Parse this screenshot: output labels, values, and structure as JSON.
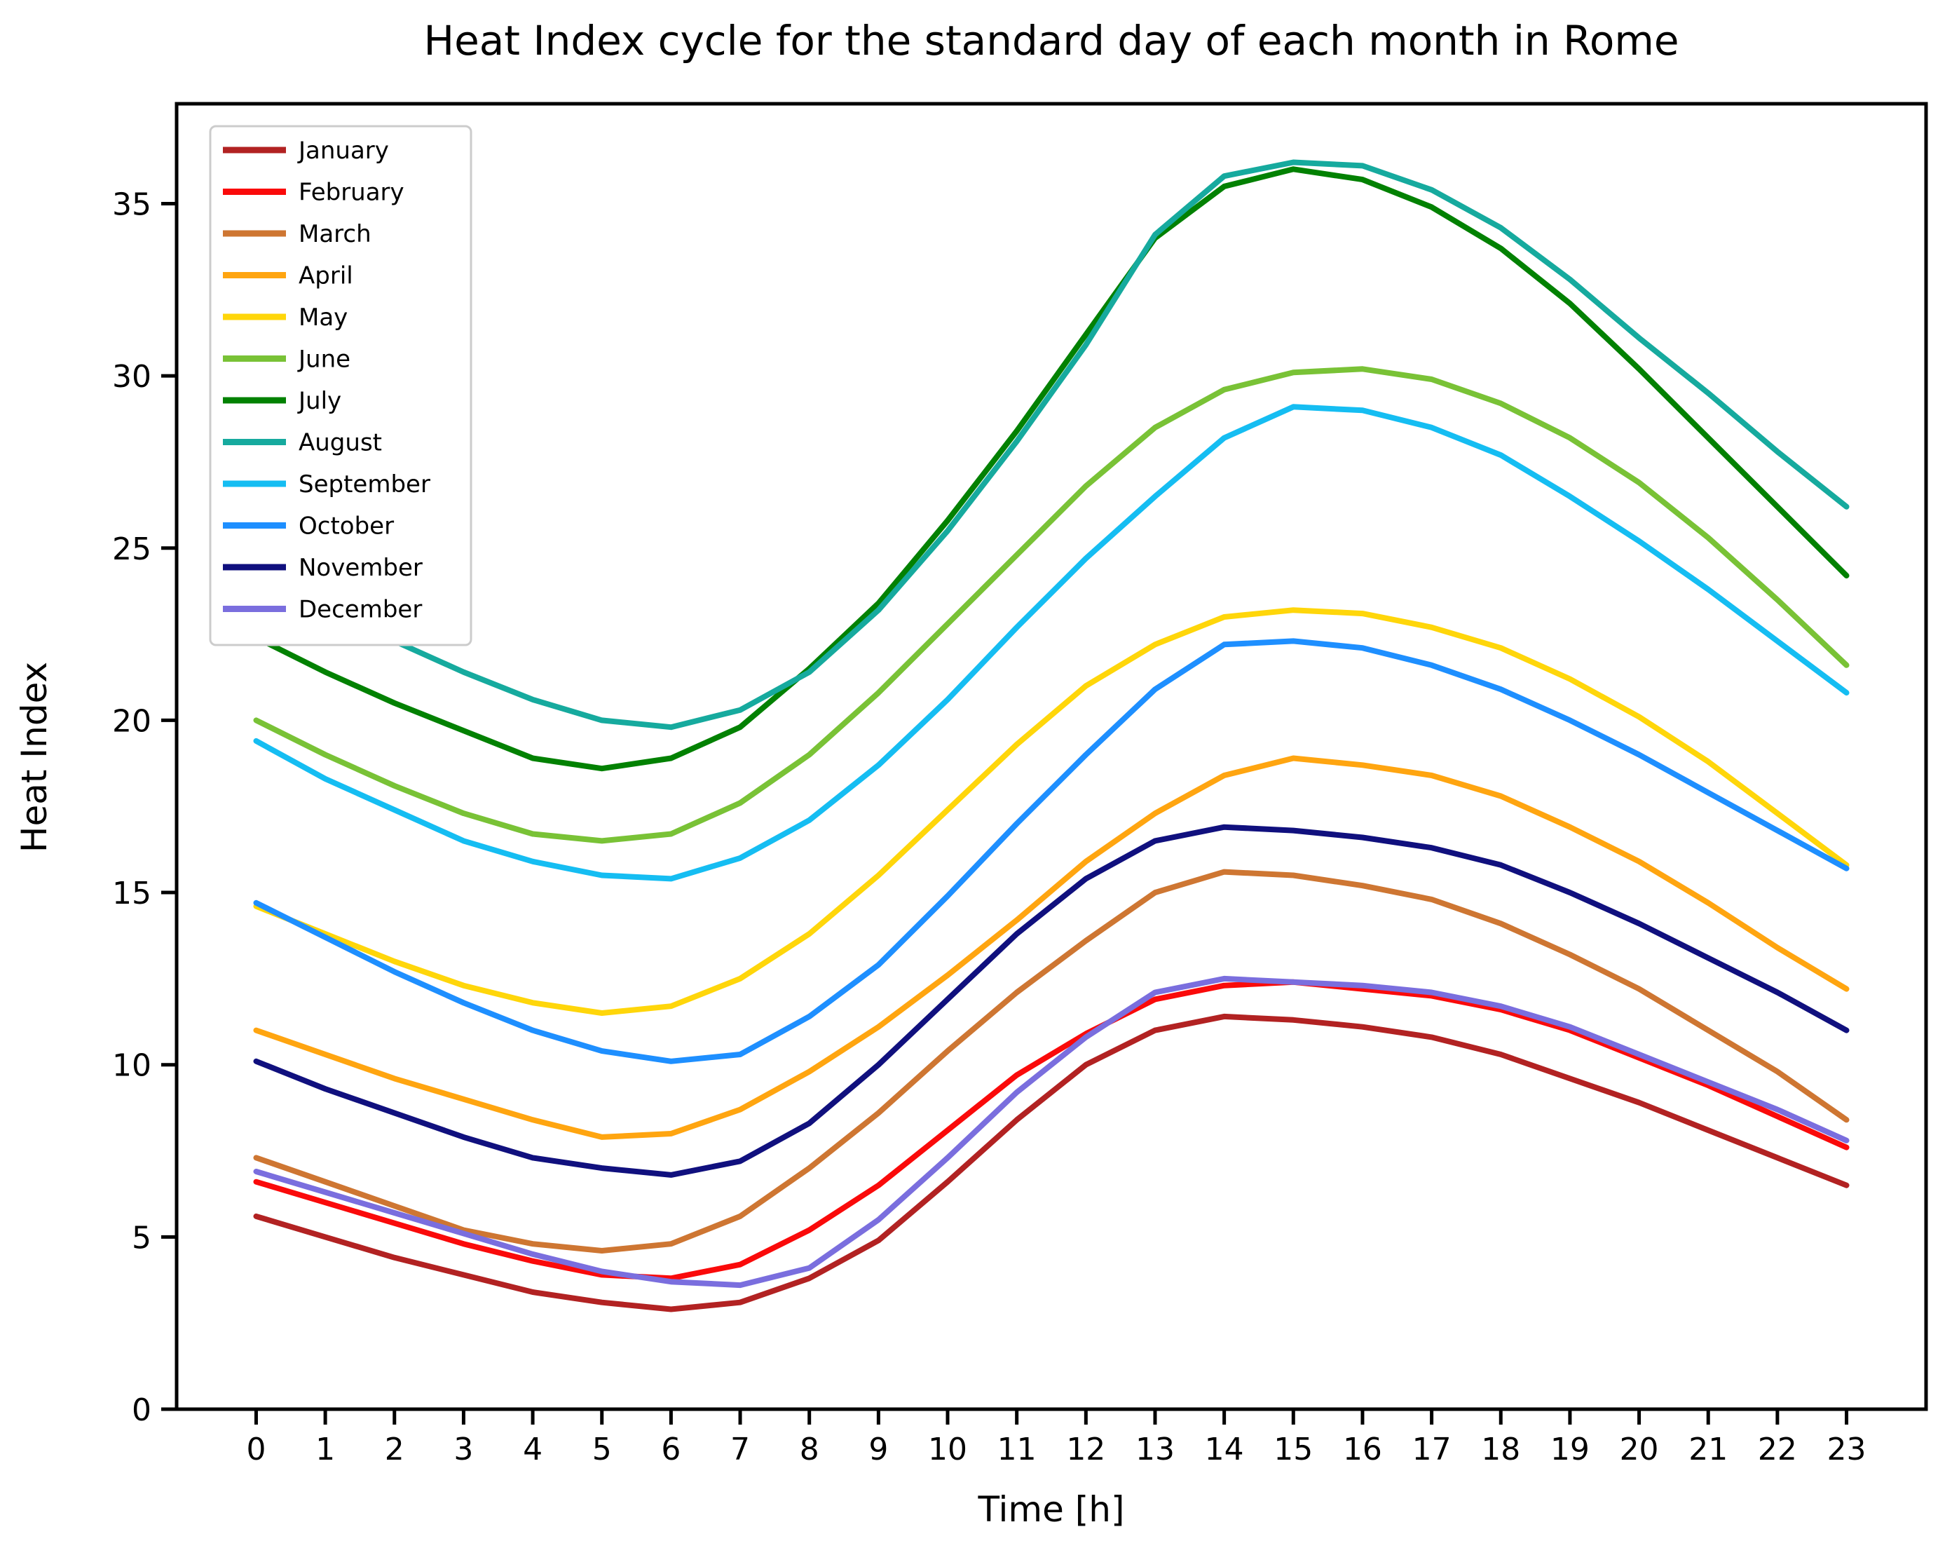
{
  "title": "Heat Index cycle for the standard day of each month in Rome",
  "xlabel": "Time [h]",
  "ylabel": "Heat Index",
  "chart_data": {
    "type": "line",
    "title": "Heat Index cycle for the standard day of each month in Rome",
    "xlabel": "Time [h]",
    "ylabel": "Heat Index",
    "x": [
      0,
      1,
      2,
      3,
      4,
      5,
      6,
      7,
      8,
      9,
      10,
      11,
      12,
      13,
      14,
      15,
      16,
      17,
      18,
      19,
      20,
      21,
      22,
      23
    ],
    "xticks": [
      0,
      1,
      2,
      3,
      4,
      5,
      6,
      7,
      8,
      9,
      10,
      11,
      12,
      13,
      14,
      15,
      16,
      17,
      18,
      19,
      20,
      21,
      22,
      23
    ],
    "yticks": [
      0,
      5,
      10,
      15,
      20,
      25,
      30,
      35
    ],
    "xlim": [
      -1.15,
      24.15
    ],
    "ylim": [
      0,
      37.9
    ],
    "grid": false,
    "legend_position": "upper left",
    "series": [
      {
        "name": "January",
        "color": "#b22222",
        "values": [
          5.6,
          5.0,
          4.4,
          3.9,
          3.4,
          3.1,
          2.9,
          3.1,
          3.8,
          4.9,
          6.6,
          8.4,
          10.0,
          11.0,
          11.4,
          11.3,
          11.1,
          10.8,
          10.3,
          9.6,
          8.9,
          8.1,
          7.3,
          6.5
        ]
      },
      {
        "name": "February",
        "color": "#fa0a0a",
        "values": [
          6.6,
          6.0,
          5.4,
          4.8,
          4.3,
          3.9,
          3.8,
          4.2,
          5.2,
          6.5,
          8.1,
          9.7,
          10.9,
          11.9,
          12.3,
          12.4,
          12.2,
          12.0,
          11.6,
          11.0,
          10.2,
          9.4,
          8.5,
          7.6
        ]
      },
      {
        "name": "March",
        "color": "#ce7632",
        "values": [
          7.3,
          6.6,
          5.9,
          5.2,
          4.8,
          4.6,
          4.8,
          5.6,
          7.0,
          8.6,
          10.4,
          12.1,
          13.6,
          15.0,
          15.6,
          15.5,
          15.2,
          14.8,
          14.1,
          13.2,
          12.2,
          11.0,
          9.8,
          8.4
        ]
      },
      {
        "name": "April",
        "color": "#ffa510",
        "values": [
          11.0,
          10.3,
          9.6,
          9.0,
          8.4,
          7.9,
          8.0,
          8.7,
          9.8,
          11.1,
          12.6,
          14.2,
          15.9,
          17.3,
          18.4,
          18.9,
          18.7,
          18.4,
          17.8,
          16.9,
          15.9,
          14.7,
          13.4,
          12.2
        ]
      },
      {
        "name": "May",
        "color": "#ffd60a",
        "values": [
          14.6,
          13.8,
          13.0,
          12.3,
          11.8,
          11.5,
          11.7,
          12.5,
          13.8,
          15.5,
          17.4,
          19.3,
          21.0,
          22.2,
          23.0,
          23.2,
          23.1,
          22.7,
          22.1,
          21.2,
          20.1,
          18.8,
          17.3,
          15.8
        ]
      },
      {
        "name": "June",
        "color": "#79c236",
        "values": [
          20.0,
          19.0,
          18.1,
          17.3,
          16.7,
          16.5,
          16.7,
          17.6,
          19.0,
          20.8,
          22.8,
          24.8,
          26.8,
          28.5,
          29.6,
          30.1,
          30.2,
          29.9,
          29.2,
          28.2,
          26.9,
          25.3,
          23.5,
          21.6
        ]
      },
      {
        "name": "July",
        "color": "#028102",
        "values": [
          22.4,
          21.4,
          20.5,
          19.7,
          18.9,
          18.6,
          18.9,
          19.8,
          21.5,
          23.4,
          25.8,
          28.4,
          31.2,
          34.0,
          35.5,
          36.0,
          35.7,
          34.9,
          33.7,
          32.1,
          30.2,
          28.2,
          26.2,
          24.2
        ]
      },
      {
        "name": "August",
        "color": "#16aa9e",
        "values": [
          24.4,
          23.3,
          22.3,
          21.4,
          20.6,
          20.0,
          19.8,
          20.3,
          21.4,
          23.2,
          25.5,
          28.1,
          30.9,
          34.1,
          35.8,
          36.2,
          36.1,
          35.4,
          34.3,
          32.8,
          31.1,
          29.5,
          27.8,
          26.2
        ]
      },
      {
        "name": "September",
        "color": "#15bdf2",
        "values": [
          19.4,
          18.3,
          17.4,
          16.5,
          15.9,
          15.5,
          15.4,
          16.0,
          17.1,
          18.7,
          20.6,
          22.7,
          24.7,
          26.5,
          28.2,
          29.1,
          29.0,
          28.5,
          27.7,
          26.5,
          25.2,
          23.8,
          22.3,
          20.8
        ]
      },
      {
        "name": "October",
        "color": "#1e8fff",
        "values": [
          14.7,
          13.7,
          12.7,
          11.8,
          11.0,
          10.4,
          10.1,
          10.3,
          11.4,
          12.9,
          14.9,
          17.0,
          19.0,
          20.9,
          22.2,
          22.3,
          22.1,
          21.6,
          20.9,
          20.0,
          19.0,
          17.9,
          16.8,
          15.7
        ]
      },
      {
        "name": "November",
        "color": "#10107e",
        "values": [
          10.1,
          9.3,
          8.6,
          7.9,
          7.3,
          7.0,
          6.8,
          7.2,
          8.3,
          10.0,
          11.9,
          13.8,
          15.4,
          16.5,
          16.9,
          16.8,
          16.6,
          16.3,
          15.8,
          15.0,
          14.1,
          13.1,
          12.1,
          11.0
        ]
      },
      {
        "name": "December",
        "color": "#7a6ede",
        "values": [
          6.9,
          6.3,
          5.7,
          5.1,
          4.5,
          4.0,
          3.7,
          3.6,
          4.1,
          5.5,
          7.3,
          9.2,
          10.8,
          12.1,
          12.5,
          12.4,
          12.3,
          12.1,
          11.7,
          11.1,
          10.3,
          9.5,
          8.7,
          7.8
        ]
      }
    ]
  },
  "style": {
    "line_width": 8,
    "spine_color": "#000000",
    "legend_border_color": "#cccccc",
    "background": "#ffffff"
  }
}
